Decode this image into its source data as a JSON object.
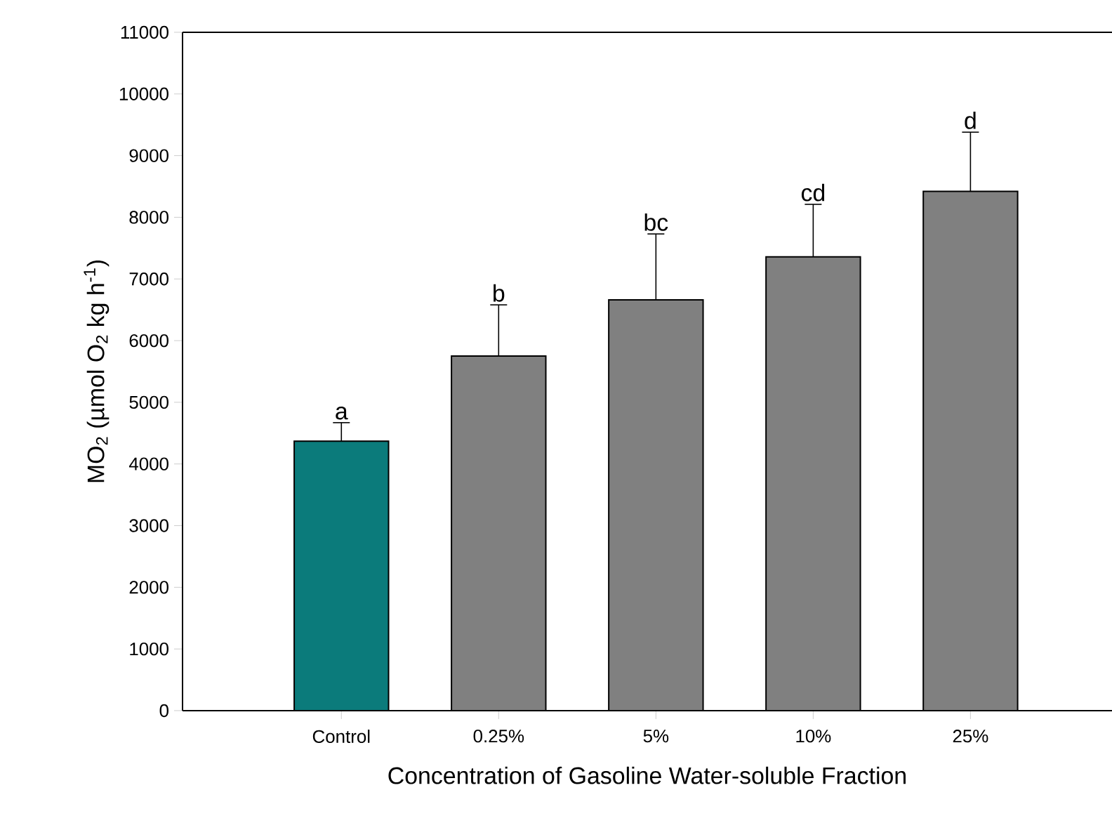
{
  "chart_data": {
    "type": "bar",
    "xlabel": "Concentration of Gasoline Water-soluble Fraction",
    "ylabel": "MO$_{2}$ (µmol O$_{2}$ kg h$^{-1}$)",
    "categories": [
      "Control",
      "0.25%",
      "5%",
      "10%",
      "25%"
    ],
    "values": [
      4370,
      5750,
      6660,
      7360,
      8420
    ],
    "errors": [
      [
        4370,
        4670
      ],
      [
        5750,
        6580
      ],
      [
        6660,
        7730
      ],
      [
        7360,
        8210
      ],
      [
        8420,
        9380
      ]
    ],
    "colors": [
      "#0b7b7b",
      "#808080",
      "#808080",
      "#808080",
      "#808080"
    ],
    "ylim": [
      0,
      11000
    ],
    "yticks": [
      0,
      1000,
      2000,
      3000,
      4000,
      5000,
      6000,
      7000,
      8000,
      9000,
      10000,
      11000
    ],
    "annotations": [
      {
        "text": "a",
        "x": "Control",
        "y": 4670
      },
      {
        "text": "b",
        "x": "0.25%",
        "y": 6580
      },
      {
        "text": "bc",
        "x": "5%",
        "y": 7730
      },
      {
        "text": "cd",
        "x": "10%",
        "y": 8210
      },
      {
        "text": "d",
        "x": "25%",
        "y": 9380
      }
    ]
  }
}
